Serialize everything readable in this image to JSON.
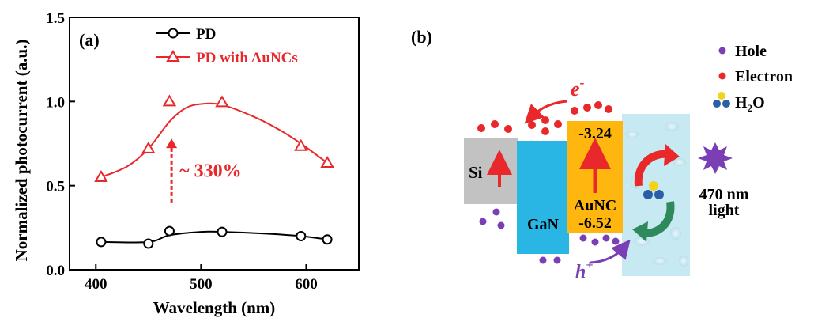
{
  "chart_data": {
    "type": "line",
    "panel_label": "(a)",
    "xlabel": "Wavelength (nm)",
    "ylabel": "Normalized photocurrent (a.u.)",
    "xlim": [
      375,
      650
    ],
    "ylim": [
      0.0,
      1.5
    ],
    "x_ticks": [
      400,
      500,
      600
    ],
    "y_ticks": [
      0.0,
      0.5,
      1.0,
      1.5
    ],
    "x_tick_labels": [
      "400",
      "500",
      "600"
    ],
    "y_tick_labels": [
      "0.0",
      "0.5",
      "1.0",
      "1.5"
    ],
    "legend_position": "top-left",
    "series": [
      {
        "name": "PD",
        "marker": "circle",
        "color": "#000000",
        "x": [
          405,
          450,
          470,
          520,
          595,
          620
        ],
        "y": [
          0.165,
          0.155,
          0.23,
          0.225,
          0.2,
          0.18
        ],
        "fit_x": [
          405,
          450,
          470,
          500,
          520,
          560,
          595,
          620
        ],
        "fit_y": [
          0.165,
          0.165,
          0.205,
          0.225,
          0.225,
          0.215,
          0.2,
          0.18
        ]
      },
      {
        "name": "PD with AuNCs",
        "marker": "triangle",
        "color": "#e8282b",
        "x": [
          405,
          450,
          470,
          520,
          595,
          620
        ],
        "y": [
          0.55,
          0.72,
          1.0,
          0.995,
          0.735,
          0.635
        ],
        "fit_x": [
          405,
          430,
          450,
          470,
          485,
          500,
          520,
          550,
          575,
          595,
          620
        ],
        "fit_y": [
          0.55,
          0.615,
          0.72,
          0.88,
          0.96,
          0.985,
          0.98,
          0.91,
          0.83,
          0.75,
          0.635
        ]
      }
    ],
    "annotation": {
      "text": "~ 330%",
      "arrow_x": 472,
      "arrow_from_y": 0.4,
      "arrow_to_y": 0.78,
      "color": "#e8282b"
    }
  },
  "diagram": {
    "panel_label": "(b)",
    "legend": [
      {
        "name": "hole",
        "label": "Hole",
        "color": "#7b3fb5"
      },
      {
        "name": "electron",
        "label": "Electron",
        "color": "#e8282b"
      },
      {
        "name": "water",
        "label": "H",
        "sub": "2",
        "suffix": "O"
      }
    ],
    "si_label": "Si",
    "gan_label": "GaN",
    "aunc_top_value": "-3.24",
    "aunc_label": "AuNC",
    "aunc_bottom_value": "-6.52",
    "electron_symbol": "e",
    "electron_sup": "-",
    "hole_symbol": "h",
    "hole_sup": "+",
    "light_line1": "470 nm",
    "light_line2": "light",
    "colors": {
      "si": "#c2c2c2",
      "gan": "#29b6e5",
      "aunc": "#ffb70f",
      "water": "#c7e9f1",
      "light_burst": "#7b3fb5",
      "green_arrow": "#2e8a5a"
    }
  }
}
